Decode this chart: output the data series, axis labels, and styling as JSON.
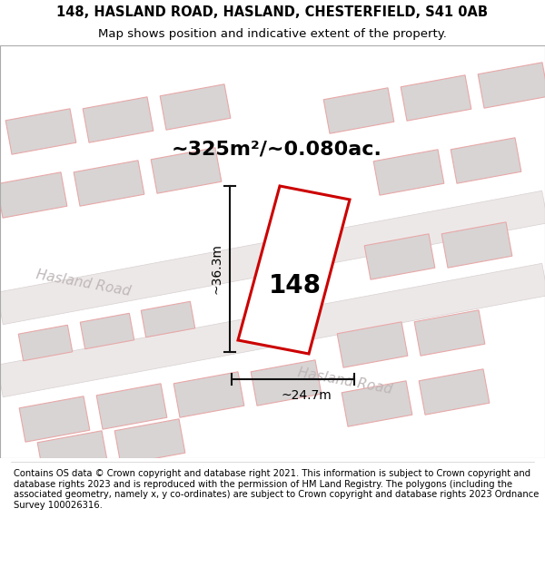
{
  "title": "148, HASLAND ROAD, HASLAND, CHESTERFIELD, S41 0AB",
  "subtitle": "Map shows position and indicative extent of the property.",
  "footer": "Contains OS data © Crown copyright and database right 2021. This information is subject to Crown copyright and database rights 2023 and is reproduced with the permission of HM Land Registry. The polygons (including the associated geometry, namely x, y co-ordinates) are subject to Crown copyright and database rights 2023 Ordnance Survey 100026316.",
  "area_text": "~325m²/~0.080ac.",
  "dim_width": "~24.7m",
  "dim_height": "~36.3m",
  "label_148": "148",
  "road_label1": "Hasland Road",
  "road_label2": "Hasland Road",
  "map_bg": "#f7f4f4",
  "road_fill": "#ede8e8",
  "road_edge": "#d8d0d0",
  "block_fill": "#d8d4d4",
  "pink_line": "#e8a8a8",
  "plot_color": "#cc0000",
  "dim_color": "#111111",
  "road_text_color": "#c0b8b8",
  "title_fontsize": 10.5,
  "subtitle_fontsize": 9.5,
  "area_fontsize": 16,
  "label_fontsize": 20,
  "dim_fontsize": 10,
  "road_fontsize": 11,
  "footer_fontsize": 7.2
}
